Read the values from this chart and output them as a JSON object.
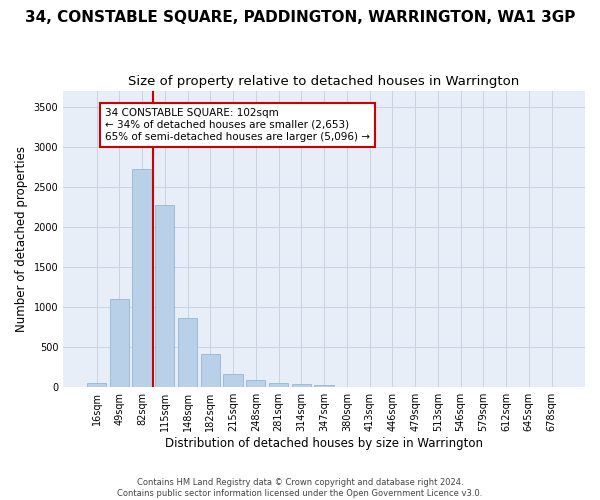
{
  "title": "34, CONSTABLE SQUARE, PADDINGTON, WARRINGTON, WA1 3GP",
  "subtitle": "Size of property relative to detached houses in Warrington",
  "xlabel": "Distribution of detached houses by size in Warrington",
  "ylabel": "Number of detached properties",
  "footer_line1": "Contains HM Land Registry data © Crown copyright and database right 2024.",
  "footer_line2": "Contains public sector information licensed under the Open Government Licence v3.0.",
  "categories": [
    "16sqm",
    "49sqm",
    "82sqm",
    "115sqm",
    "148sqm",
    "182sqm",
    "215sqm",
    "248sqm",
    "281sqm",
    "314sqm",
    "347sqm",
    "380sqm",
    "413sqm",
    "446sqm",
    "479sqm",
    "513sqm",
    "546sqm",
    "579sqm",
    "612sqm",
    "645sqm",
    "678sqm"
  ],
  "values": [
    50,
    1100,
    2720,
    2270,
    860,
    420,
    165,
    85,
    55,
    40,
    30,
    0,
    0,
    0,
    0,
    0,
    0,
    0,
    0,
    0,
    0
  ],
  "bar_color": "#b8d0e8",
  "bar_edge_color": "#88aed0",
  "grid_color": "#c8d4e4",
  "background_color": "#e8eef8",
  "annotation_line1": "34 CONSTABLE SQUARE: 102sqm",
  "annotation_line2": "← 34% of detached houses are smaller (2,653)",
  "annotation_line3": "65% of semi-detached houses are larger (5,096) →",
  "annotation_box_edgecolor": "#cc0000",
  "property_line_x": 2.5,
  "property_line_color": "#cc0000",
  "ylim": [
    0,
    3700
  ],
  "yticks": [
    0,
    500,
    1000,
    1500,
    2000,
    2500,
    3000,
    3500
  ],
  "title_fontsize": 11,
  "subtitle_fontsize": 9.5,
  "xlabel_fontsize": 8.5,
  "ylabel_fontsize": 8.5,
  "tick_fontsize": 7,
  "annotation_fontsize": 7.5,
  "footer_fontsize": 6
}
